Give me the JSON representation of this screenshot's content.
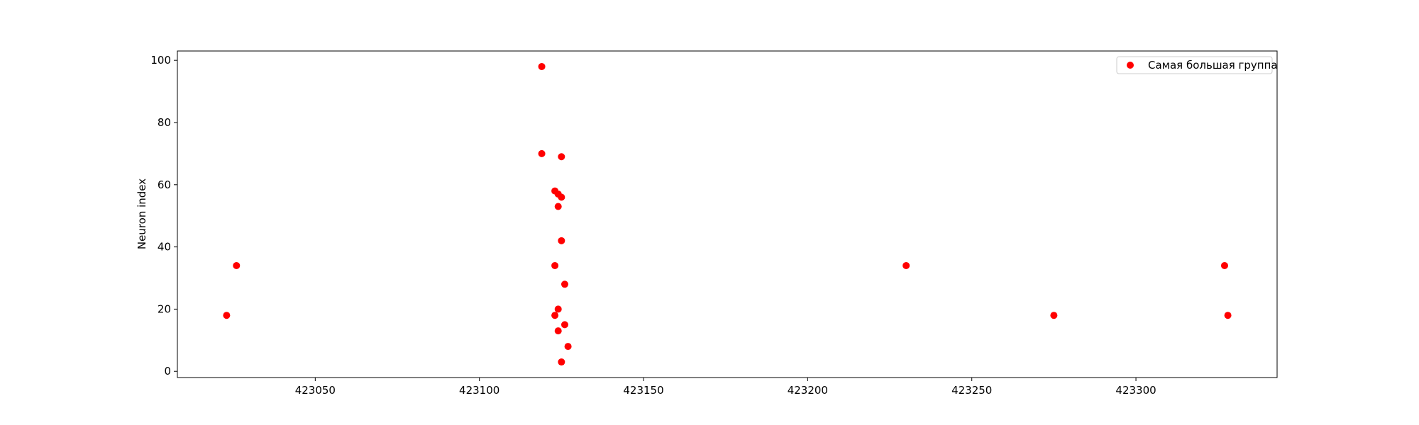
{
  "chart_data": {
    "type": "scatter",
    "title": "",
    "xlabel": "",
    "ylabel": "Neuron index",
    "xlim": [
      423008,
      423343
    ],
    "ylim": [
      -2,
      103
    ],
    "xticks": [
      423050,
      423100,
      423150,
      423200,
      423250,
      423300
    ],
    "yticks": [
      0,
      20,
      40,
      60,
      80,
      100
    ],
    "grid": false,
    "legend_position": "top-right",
    "series": [
      {
        "name": "Самая большая группа",
        "color": "#ff0000",
        "points": [
          {
            "x": 423023,
            "y": 18
          },
          {
            "x": 423026,
            "y": 34
          },
          {
            "x": 423119,
            "y": 98
          },
          {
            "x": 423119,
            "y": 70
          },
          {
            "x": 423123,
            "y": 58
          },
          {
            "x": 423123,
            "y": 34
          },
          {
            "x": 423123,
            "y": 18
          },
          {
            "x": 423124,
            "y": 57
          },
          {
            "x": 423124,
            "y": 53
          },
          {
            "x": 423124,
            "y": 20
          },
          {
            "x": 423124,
            "y": 13
          },
          {
            "x": 423125,
            "y": 69
          },
          {
            "x": 423125,
            "y": 56
          },
          {
            "x": 423125,
            "y": 42
          },
          {
            "x": 423125,
            "y": 3
          },
          {
            "x": 423126,
            "y": 28
          },
          {
            "x": 423126,
            "y": 15
          },
          {
            "x": 423127,
            "y": 8
          },
          {
            "x": 423230,
            "y": 34
          },
          {
            "x": 423275,
            "y": 18
          },
          {
            "x": 423327,
            "y": 34
          },
          {
            "x": 423328,
            "y": 18
          }
        ]
      }
    ]
  }
}
